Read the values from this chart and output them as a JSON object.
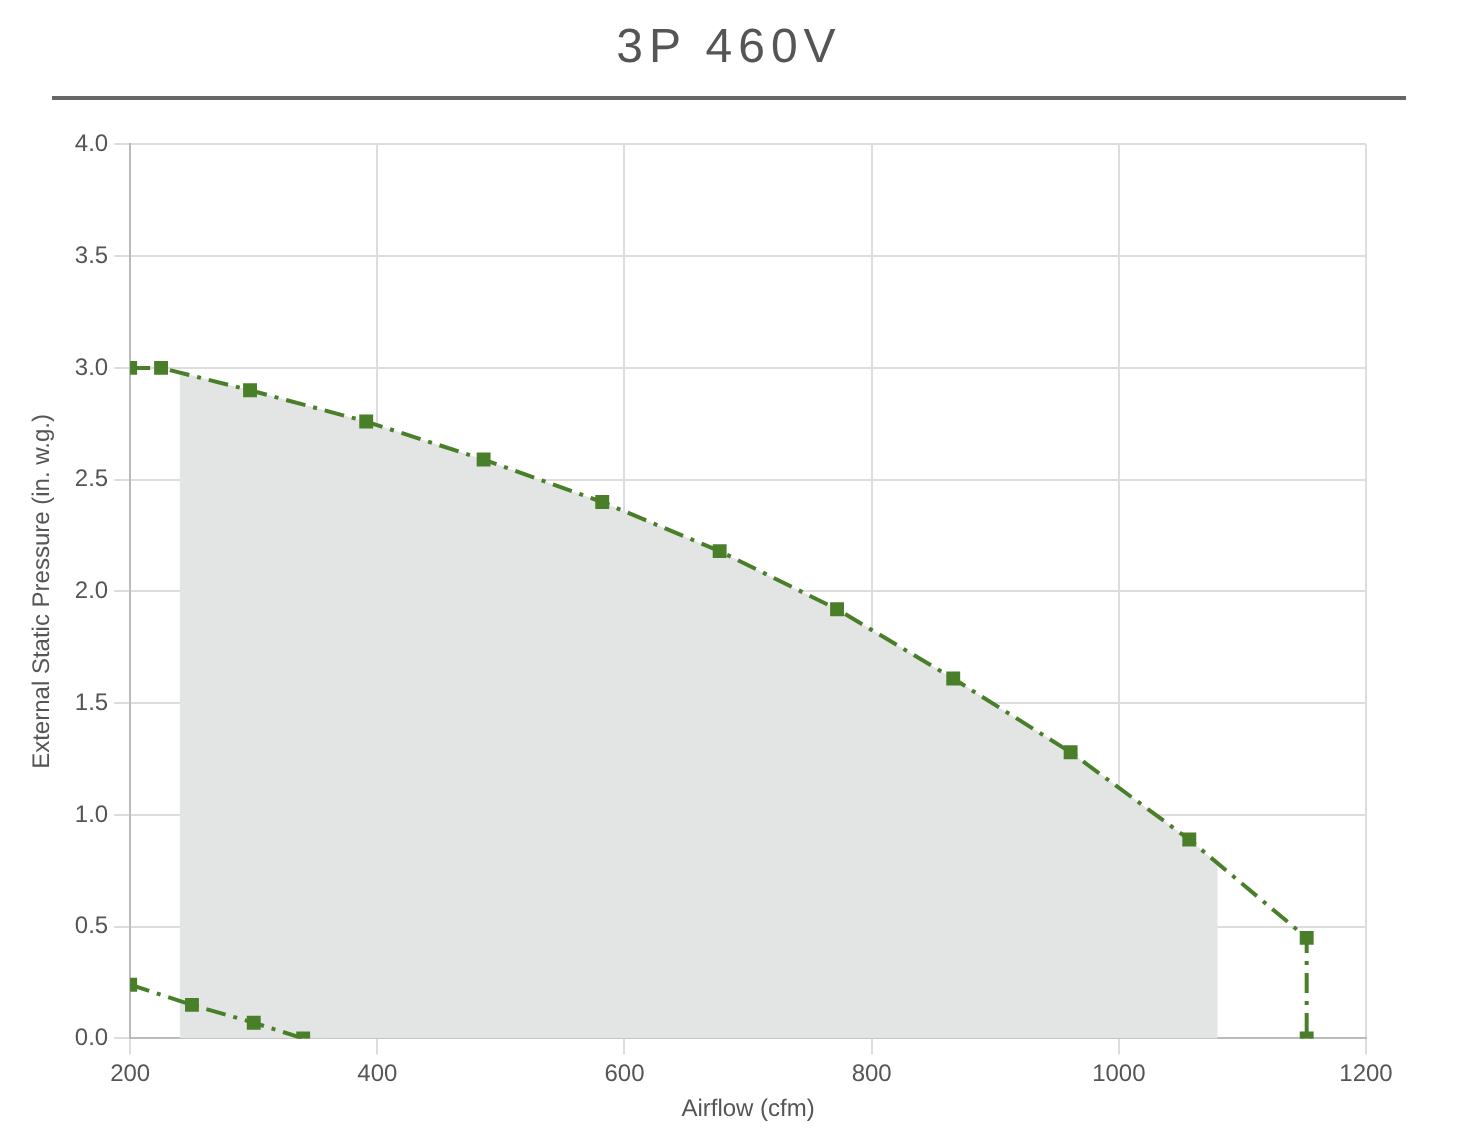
{
  "chart_data": {
    "type": "line",
    "title": "3P 460V",
    "xlabel": "Airflow (cfm)",
    "ylabel": "External Static Pressure (in. w.g.)",
    "xlim": [
      200,
      1200
    ],
    "xticks": [
      200,
      400,
      600,
      800,
      1000,
      1200
    ],
    "ylim": [
      0,
      4
    ],
    "yticks": [
      {
        "value": 0,
        "label": "0.0"
      },
      0.5,
      {
        "value": 1,
        "label": "1.0"
      },
      1.5,
      {
        "value": 2,
        "label": "2.0"
      },
      2.5,
      {
        "value": 3,
        "label": "3.0"
      },
      3.5,
      {
        "value": 4,
        "label": "4.0"
      }
    ],
    "grid": true,
    "marker": "square",
    "line_style": "dashed",
    "series": [
      {
        "type": "area",
        "color": "#e3e4e4",
        "marker": "none",
        "x": [
          240,
          297,
          391,
          486,
          582,
          677,
          772,
          866,
          961,
          1057,
          1080
        ],
        "values": [
          2.98,
          2.9,
          2.76,
          2.59,
          2.4,
          2.18,
          1.92,
          1.61,
          1.28,
          0.89,
          0.78
        ]
      },
      {
        "color": "#4a7f2a",
        "x": [
          200,
          225,
          297,
          391,
          486,
          582,
          677,
          772,
          866,
          961,
          1057,
          1152,
          1152
        ],
        "values": [
          3.0,
          3.0,
          2.9,
          2.76,
          2.59,
          2.4,
          2.18,
          1.92,
          1.61,
          1.28,
          0.89,
          0.45,
          0
        ]
      },
      {
        "color": "#4a7f2a",
        "x": [
          200,
          250,
          300,
          340
        ],
        "values": [
          0.24,
          0.15,
          0.07,
          0
        ]
      }
    ]
  }
}
